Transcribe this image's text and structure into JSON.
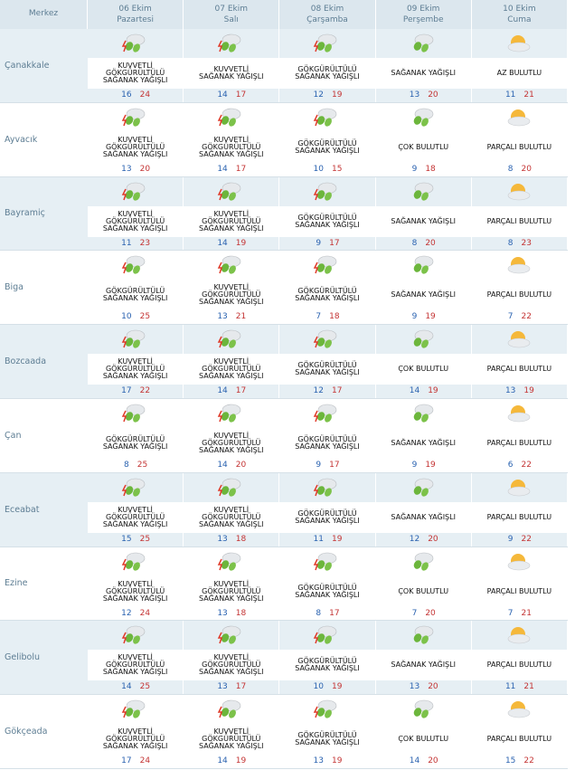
{
  "header": {
    "location": "Merkez",
    "days": [
      {
        "date": "06 Ekim",
        "weekday": "Pazartesi"
      },
      {
        "date": "07 Ekim",
        "weekday": "Salı"
      },
      {
        "date": "08 Ekim",
        "weekday": "Çarşamba"
      },
      {
        "date": "09 Ekim",
        "weekday": "Perşembe"
      },
      {
        "date": "10 Ekim",
        "weekday": "Cuma"
      }
    ]
  },
  "rows": [
    {
      "name": "Çanakkale",
      "cells": [
        {
          "condition": "KUVVETLİ GÖKGÜRÜLTÜLÜ SAĞANAK YAĞIŞLI",
          "min": 16,
          "max": 24
        },
        {
          "condition": "KUVVETLİ SAĞANAK YAĞIŞLI",
          "min": 14,
          "max": 17
        },
        {
          "condition": "GÖKGÜRÜLTÜLÜ SAĞANAK YAĞIŞLI",
          "min": 12,
          "max": 19
        },
        {
          "condition": "SAĞANAK YAĞIŞLI",
          "min": 13,
          "max": 20
        },
        {
          "condition": "AZ BULUTLU",
          "min": 11,
          "max": 21
        }
      ]
    },
    {
      "name": "Ayvacık",
      "cells": [
        {
          "condition": "KUVVETLİ GÖKGÜRÜLTÜLÜ SAĞANAK YAĞIŞLI",
          "min": 13,
          "max": 20
        },
        {
          "condition": "KUVVETLİ GÖKGÜRÜLTÜLÜ SAĞANAK YAĞIŞLI",
          "min": 14,
          "max": 17
        },
        {
          "condition": "GÖKGÜRÜLTÜLÜ SAĞANAK YAĞIŞLI",
          "min": 10,
          "max": 15
        },
        {
          "condition": "ÇOK BULUTLU",
          "min": 9,
          "max": 18
        },
        {
          "condition": "PARÇALI BULUTLU",
          "min": 8,
          "max": 20
        }
      ]
    },
    {
      "name": "Bayramiç",
      "cells": [
        {
          "condition": "KUVVETLİ GÖKGÜRÜLTÜLÜ SAĞANAK YAĞIŞLI",
          "min": 11,
          "max": 23
        },
        {
          "condition": "KUVVETLİ GÖKGÜRÜLTÜLÜ SAĞANAK YAĞIŞLI",
          "min": 14,
          "max": 19
        },
        {
          "condition": "GÖKGÜRÜLTÜLÜ SAĞANAK YAĞIŞLI",
          "min": 9,
          "max": 17
        },
        {
          "condition": "SAĞANAK YAĞIŞLI",
          "min": 8,
          "max": 20
        },
        {
          "condition": "PARÇALI BULUTLU",
          "min": 8,
          "max": 23
        }
      ]
    },
    {
      "name": "Biga",
      "cells": [
        {
          "condition": "GÖKGÜRÜLTÜLÜ SAĞANAK YAĞIŞLI",
          "min": 10,
          "max": 25
        },
        {
          "condition": "KUVVETLİ GÖKGÜRÜLTÜLÜ SAĞANAK YAĞIŞLI",
          "min": 13,
          "max": 21
        },
        {
          "condition": "GÖKGÜRÜLTÜLÜ SAĞANAK YAĞIŞLI",
          "min": 7,
          "max": 18
        },
        {
          "condition": "SAĞANAK YAĞIŞLI",
          "min": 9,
          "max": 19
        },
        {
          "condition": "PARÇALI BULUTLU",
          "min": 7,
          "max": 22
        }
      ]
    },
    {
      "name": "Bozcaada",
      "cells": [
        {
          "condition": "KUVVETLİ GÖKGÜRÜLTÜLÜ SAĞANAK YAĞIŞLI",
          "min": 17,
          "max": 22
        },
        {
          "condition": "KUVVETLİ GÖKGÜRÜLTÜLÜ SAĞANAK YAĞIŞLI",
          "min": 14,
          "max": 17
        },
        {
          "condition": "GÖKGÜRÜLTÜLÜ SAĞANAK YAĞIŞLI",
          "min": 12,
          "max": 17
        },
        {
          "condition": "ÇOK BULUTLU",
          "min": 14,
          "max": 19
        },
        {
          "condition": "PARÇALI BULUTLU",
          "min": 13,
          "max": 19
        }
      ]
    },
    {
      "name": "Çan",
      "cells": [
        {
          "condition": "GÖKGÜRÜLTÜLÜ SAĞANAK YAĞIŞLI",
          "min": 8,
          "max": 25
        },
        {
          "condition": "KUVVETLİ GÖKGÜRÜLTÜLÜ SAĞANAK YAĞIŞLI",
          "min": 14,
          "max": 20
        },
        {
          "condition": "GÖKGÜRÜLTÜLÜ SAĞANAK YAĞIŞLI",
          "min": 9,
          "max": 17
        },
        {
          "condition": "SAĞANAK YAĞIŞLI",
          "min": 9,
          "max": 19
        },
        {
          "condition": "PARÇALI BULUTLU",
          "min": 6,
          "max": 22
        }
      ]
    },
    {
      "name": "Eceabat",
      "cells": [
        {
          "condition": "KUVVETLİ GÖKGÜRÜLTÜLÜ SAĞANAK YAĞIŞLI",
          "min": 15,
          "max": 25
        },
        {
          "condition": "KUVVETLİ GÖKGÜRÜLTÜLÜ SAĞANAK YAĞIŞLI",
          "min": 13,
          "max": 18
        },
        {
          "condition": "GÖKGÜRÜLTÜLÜ SAĞANAK YAĞIŞLI",
          "min": 11,
          "max": 19
        },
        {
          "condition": "SAĞANAK YAĞIŞLI",
          "min": 12,
          "max": 20
        },
        {
          "condition": "PARÇALI BULUTLU",
          "min": 9,
          "max": 22
        }
      ]
    },
    {
      "name": "Ezine",
      "cells": [
        {
          "condition": "KUVVETLİ GÖKGÜRÜLTÜLÜ SAĞANAK YAĞIŞLI",
          "min": 12,
          "max": 24
        },
        {
          "condition": "KUVVETLİ GÖKGÜRÜLTÜLÜ SAĞANAK YAĞIŞLI",
          "min": 13,
          "max": 18
        },
        {
          "condition": "GÖKGÜRÜLTÜLÜ SAĞANAK YAĞIŞLI",
          "min": 8,
          "max": 17
        },
        {
          "condition": "ÇOK BULUTLU",
          "min": 7,
          "max": 20
        },
        {
          "condition": "PARÇALI BULUTLU",
          "min": 7,
          "max": 21
        }
      ]
    },
    {
      "name": "Gelibolu",
      "cells": [
        {
          "condition": "KUVVETLİ GÖKGÜRÜLTÜLÜ SAĞANAK YAĞIŞLI",
          "min": 14,
          "max": 25
        },
        {
          "condition": "KUVVETLİ GÖKGÜRÜLTÜLÜ SAĞANAK YAĞIŞLI",
          "min": 13,
          "max": 17
        },
        {
          "condition": "GÖKGÜRÜLTÜLÜ SAĞANAK YAĞIŞLI",
          "min": 10,
          "max": 19
        },
        {
          "condition": "SAĞANAK YAĞIŞLI",
          "min": 13,
          "max": 20
        },
        {
          "condition": "PARÇALI BULUTLU",
          "min": 11,
          "max": 21
        }
      ]
    },
    {
      "name": "Gökçeada",
      "cells": [
        {
          "condition": "KUVVETLİ GÖKGÜRÜLTÜLÜ SAĞANAK YAĞIŞLI",
          "min": 17,
          "max": 24
        },
        {
          "condition": "KUVVETLİ GÖKGÜRÜLTÜLÜ SAĞANAK YAĞIŞLI",
          "min": 14,
          "max": 19
        },
        {
          "condition": "GÖKGÜRÜLTÜLÜ SAĞANAK YAĞIŞLI",
          "min": 13,
          "max": 19
        },
        {
          "condition": "ÇOK BULUTLU",
          "min": 14,
          "max": 20
        },
        {
          "condition": "PARÇALI BULUTLU",
          "min": 15,
          "max": 22
        }
      ]
    }
  ]
}
